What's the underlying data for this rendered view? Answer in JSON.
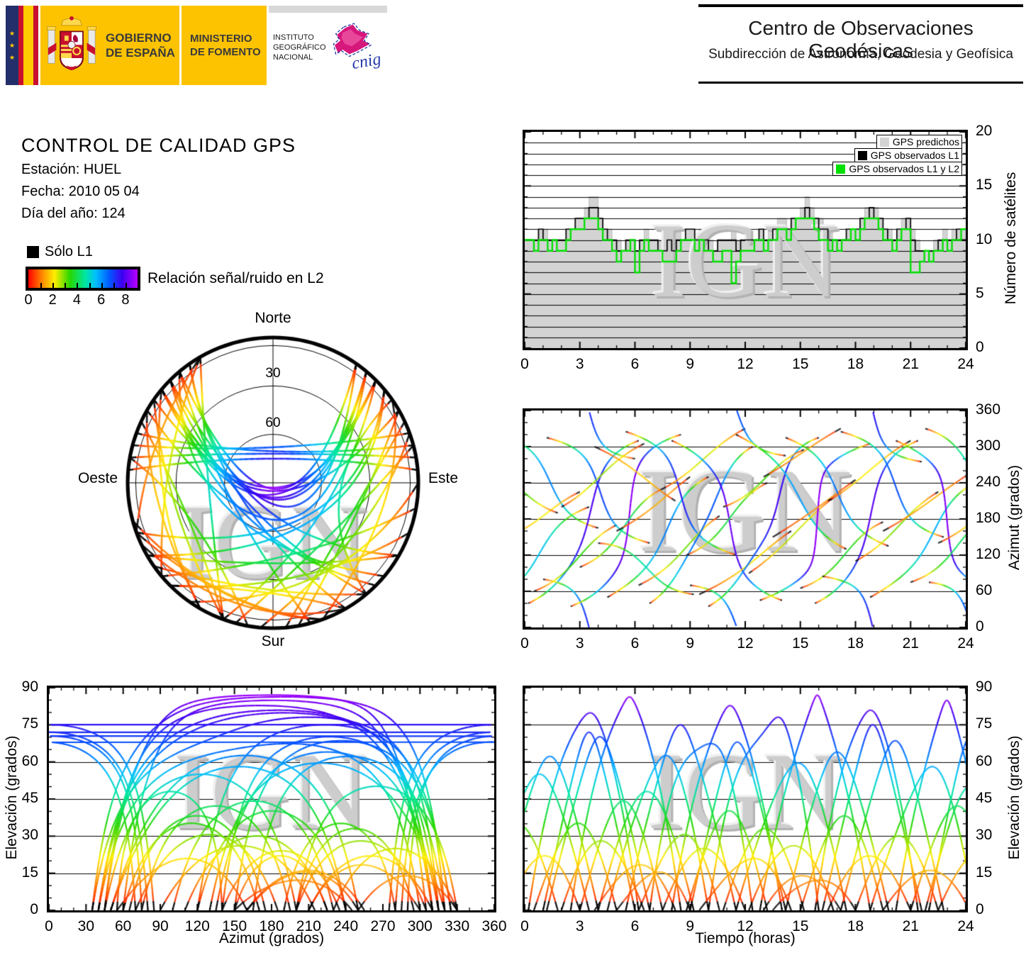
{
  "header": {
    "gobierno": {
      "line1": "GOBIERNO",
      "line2": "DE ESPAÑA"
    },
    "ministerio": {
      "line1": "MINISTERIO",
      "line2": "DE FOMENTO"
    },
    "ign": {
      "line1": "INSTITUTO",
      "line2": "GEOGRÁFICO",
      "line3": "NACIONAL",
      "cnig": "cnig"
    },
    "center": {
      "title": "Centro de Observaciones Geodésicas",
      "subtitle": "Subdirección de Astronomía, Geodesia y Geofísica"
    }
  },
  "info": {
    "title": "CONTROL DE CALIDAD GPS",
    "station": "Estación: HUEL",
    "date": "Fecha: 2010 05 04",
    "doy": "Día del año: 124",
    "solo_l1": "Sólo L1",
    "colorbar_label": "Relación señal/ruido en L2",
    "colorbar_ticks": [
      "0",
      "2",
      "4",
      "6",
      "8"
    ],
    "colorbar_range": [
      0,
      9
    ]
  },
  "watermark": "IGN",
  "skyplot": {
    "north": "Norte",
    "south": "Sur",
    "east": "Este",
    "west": "Oeste",
    "ring_labels": [
      "30",
      "60"
    ],
    "rings_el": [
      5,
      30,
      60
    ]
  },
  "charts": {
    "sat": {
      "ylabel": "Número de satélites",
      "x_ticks": [
        0,
        3,
        6,
        9,
        12,
        15,
        18,
        21,
        24
      ],
      "y_ticks": [
        0,
        5,
        10,
        15,
        20
      ],
      "legend": [
        {
          "label": "GPS predichos",
          "color": "#d3d3d3"
        },
        {
          "label": "GPS observados L1",
          "color": "#000000"
        },
        {
          "label": "GPS observados L1 y L2",
          "color": "#00e000"
        }
      ]
    },
    "az": {
      "ylabel": "Azimut (grados)",
      "x_ticks": [
        0,
        3,
        6,
        9,
        12,
        15,
        18,
        21,
        24
      ],
      "y_ticks": [
        0,
        60,
        120,
        180,
        240,
        300,
        360
      ]
    },
    "elaz": {
      "xlabel": "Azimut (grados)",
      "ylabel": "Elevación (grados)",
      "x_ticks": [
        0,
        30,
        60,
        90,
        120,
        150,
        180,
        210,
        240,
        270,
        300,
        330,
        360
      ],
      "y_ticks": [
        0,
        15,
        30,
        45,
        60,
        75,
        90
      ]
    },
    "elt": {
      "xlabel": "Tiempo (horas)",
      "ylabel": "Elevación (grados)",
      "x_ticks": [
        0,
        3,
        6,
        9,
        12,
        15,
        18,
        21,
        24
      ],
      "y_ticks": [
        0,
        15,
        30,
        45,
        60,
        75,
        90
      ]
    }
  },
  "colors": {
    "predicted_gray": "#d3d3d3",
    "observed_l1_black": "#000000",
    "observed_l1l2_green": "#00e000",
    "watermark_gray": "#cdcdcd",
    "logo_yellow": "#fdc300",
    "flag_navy": "#232f6b",
    "flag_red": "#c8102e",
    "flag_yellow": "#ffcc00",
    "cnig_magenta": "#d6177b",
    "cnig_blue": "#2438a8"
  },
  "chart_data": {
    "black_below_el_deg": 3.5,
    "snr_colormap": {
      "range": [
        0,
        9
      ],
      "stops": [
        [
          0,
          "#ff0000"
        ],
        [
          0.13,
          "#ff8c00"
        ],
        [
          0.24,
          "#ffee00"
        ],
        [
          0.38,
          "#28d700"
        ],
        [
          0.52,
          "#00e6a0"
        ],
        [
          0.62,
          "#00beff"
        ],
        [
          0.74,
          "#005aff"
        ],
        [
          0.86,
          "#3c00f0"
        ],
        [
          1,
          "#b900ff"
        ]
      ]
    },
    "satellite_count": {
      "type": "area",
      "title": "",
      "xlabel": "Tiempo (horas)",
      "ylabel": "Número de satélites",
      "xlim": [
        0,
        24
      ],
      "ylim": [
        0,
        20
      ],
      "x_step_hours": 0.25,
      "grid_every": 1,
      "series": [
        {
          "name": "GPS predichos",
          "values": [
            10,
            10,
            10,
            11,
            11,
            10,
            10,
            10,
            10,
            11,
            11,
            12,
            12,
            13,
            14,
            14,
            12,
            11,
            11,
            10,
            10,
            9,
            10,
            10,
            9,
            10,
            11,
            10,
            10,
            10,
            9,
            10,
            10,
            11,
            10,
            11,
            11,
            10,
            11,
            10,
            10,
            9,
            10,
            10,
            10,
            11,
            10,
            10,
            11,
            10,
            10,
            11,
            10,
            11,
            11,
            12,
            12,
            11,
            12,
            12,
            13,
            14,
            13,
            12,
            12,
            11,
            11,
            10,
            10,
            10,
            11,
            11,
            11,
            12,
            13,
            13,
            13,
            12,
            11,
            11,
            10,
            11,
            12,
            12,
            11,
            10,
            9,
            9,
            9,
            10,
            10,
            11,
            10,
            11,
            11,
            11
          ]
        },
        {
          "name": "GPS observados L1",
          "values": [
            10,
            10,
            10,
            11,
            10,
            10,
            10,
            10,
            10,
            11,
            11,
            12,
            12,
            12,
            13,
            13,
            12,
            11,
            10,
            10,
            9,
            9,
            10,
            10,
            9,
            10,
            10,
            10,
            10,
            9,
            9,
            10,
            9,
            10,
            10,
            11,
            11,
            10,
            10,
            10,
            9,
            9,
            10,
            10,
            10,
            10,
            9,
            10,
            10,
            10,
            10,
            11,
            10,
            10,
            11,
            11,
            11,
            11,
            12,
            12,
            12,
            13,
            12,
            12,
            11,
            11,
            10,
            10,
            10,
            10,
            11,
            11,
            11,
            12,
            12,
            13,
            12,
            12,
            11,
            10,
            10,
            11,
            11,
            12,
            10,
            9,
            9,
            9,
            9,
            9,
            10,
            10,
            10,
            10,
            11,
            11
          ]
        },
        {
          "name": "GPS observados L1 y L2",
          "values": [
            10,
            10,
            9,
            10,
            10,
            9,
            10,
            9,
            9,
            10,
            11,
            11,
            11,
            12,
            12,
            12,
            11,
            10,
            10,
            9,
            8,
            9,
            9,
            10,
            7,
            9,
            10,
            9,
            9,
            9,
            8,
            8,
            8,
            9,
            10,
            10,
            10,
            9,
            10,
            9,
            9,
            8,
            8,
            9,
            9,
            6,
            8,
            9,
            9,
            9,
            10,
            10,
            9,
            10,
            10,
            11,
            11,
            10,
            11,
            12,
            12,
            12,
            12,
            11,
            10,
            10,
            9,
            10,
            9,
            10,
            10,
            11,
            10,
            11,
            12,
            12,
            12,
            11,
            10,
            10,
            9,
            10,
            11,
            11,
            7,
            7,
            8,
            9,
            8,
            9,
            9,
            10,
            9,
            10,
            10,
            11
          ]
        }
      ]
    },
    "skyplot": {
      "type": "scatter",
      "projection": "polar azimuth/elevation, north up, zenith at center",
      "rings_deg": [
        5,
        30,
        60
      ],
      "compass": [
        "Norte",
        "Este",
        "Sur",
        "Oeste"
      ],
      "series_source": "satellite_passes",
      "color_by": "snr_colormap via elevation"
    },
    "azimuth_vs_time": {
      "type": "line",
      "xlim": [
        0,
        24
      ],
      "ylim": [
        0,
        360
      ],
      "ylabel": "Azimut (grados)",
      "grid_y": [
        60,
        120,
        180,
        240,
        300
      ],
      "series_source": "satellite_passes"
    },
    "elevation_vs_azimuth": {
      "type": "line",
      "xlim": [
        0,
        360
      ],
      "ylim": [
        0,
        90
      ],
      "xlabel": "Azimut (grados)",
      "ylabel": "Elevación (grados)",
      "grid_y": [
        15,
        30,
        45,
        60,
        75
      ],
      "series_source": "satellite_passes"
    },
    "elevation_vs_time": {
      "type": "line",
      "xlim": [
        0,
        24
      ],
      "ylim": [
        0,
        90
      ],
      "xlabel": "Tiempo (horas)",
      "ylabel": "Elevación (grados)",
      "grid_y": [
        15,
        30,
        45,
        60,
        75
      ],
      "series_source": "satellite_passes"
    },
    "satellite_passes": {
      "fields": [
        "t_rise_h",
        "t_set_h",
        "az_rise_deg",
        "az_apex_deg",
        "az_set_deg",
        "el_max_deg"
      ],
      "values": [
        [
          -2.0,
          3.5,
          45,
          120,
          200,
          55
        ],
        [
          -1.5,
          4.0,
          320,
          250,
          165,
          62
        ],
        [
          -1.0,
          3.0,
          150,
          185,
          225,
          22
        ],
        [
          0.2,
          6.2,
          40,
          150,
          310,
          78
        ],
        [
          0.5,
          5.0,
          60,
          110,
          170,
          35
        ],
        [
          1.2,
          6.8,
          315,
          235,
          140,
          70
        ],
        [
          1.0,
          6.0,
          80,
          0,
          280,
          72
        ],
        [
          2.0,
          6.5,
          200,
          255,
          305,
          28
        ],
        [
          2.5,
          8.5,
          35,
          140,
          320,
          85
        ],
        [
          3.0,
          7.5,
          100,
          160,
          230,
          44
        ],
        [
          3.8,
          8.2,
          300,
          260,
          210,
          18
        ],
        [
          4.0,
          9.2,
          140,
          100,
          55,
          48
        ],
        [
          4.5,
          10.0,
          50,
          130,
          250,
          60
        ],
        [
          5.0,
          9.0,
          160,
          200,
          250,
          15
        ],
        [
          5.5,
          11.5,
          325,
          220,
          120,
          75
        ],
        [
          6.2,
          10.6,
          70,
          120,
          185,
          30
        ],
        [
          6.8,
          12.4,
          40,
          160,
          300,
          66
        ],
        [
          7.5,
          12.0,
          230,
          280,
          330,
          25
        ],
        [
          8.0,
          14.0,
          310,
          200,
          45,
          82
        ],
        [
          8.8,
          13.2,
          120,
          175,
          240,
          40
        ],
        [
          9.0,
          14.2,
          70,
          355,
          285,
          68
        ],
        [
          9.5,
          14.5,
          55,
          100,
          160,
          20
        ],
        [
          10.0,
          16.0,
          35,
          145,
          315,
          72
        ],
        [
          10.8,
          15.2,
          200,
          245,
          295,
          33
        ],
        [
          11.5,
          17.5,
          320,
          240,
          130,
          58
        ],
        [
          12.2,
          16.8,
          90,
          150,
          215,
          26
        ],
        [
          12.8,
          18.8,
          45,
          135,
          305,
          86
        ],
        [
          13.0,
          17.2,
          250,
          290,
          330,
          14
        ],
        [
          13.5,
          18.0,
          150,
          195,
          245,
          12
        ],
        [
          14.2,
          19.8,
          315,
          225,
          135,
          64
        ],
        [
          15.0,
          19.5,
          65,
          115,
          175,
          38
        ],
        [
          15.8,
          21.4,
          40,
          155,
          310,
          80
        ],
        [
          16.2,
          21.6,
          85,
          5,
          275,
          75
        ],
        [
          16.5,
          21.0,
          210,
          260,
          310,
          22
        ],
        [
          17.2,
          22.8,
          325,
          250,
          150,
          68
        ],
        [
          18.0,
          22.5,
          110,
          165,
          225,
          30
        ],
        [
          18.8,
          24.5,
          50,
          125,
          240,
          55
        ],
        [
          19.5,
          24.2,
          160,
          205,
          255,
          16
        ],
        [
          20.2,
          25.5,
          310,
          215,
          60,
          84
        ],
        [
          21.0,
          25.8,
          75,
          130,
          195,
          42
        ],
        [
          21.8,
          26.5,
          330,
          270,
          200,
          50
        ],
        [
          22.0,
          26.8,
          75,
          350,
          290,
          70
        ],
        [
          22.5,
          27.0,
          140,
          185,
          235,
          24
        ],
        [
          -3.0,
          1.8,
          280,
          240,
          190,
          35
        ]
      ]
    }
  }
}
